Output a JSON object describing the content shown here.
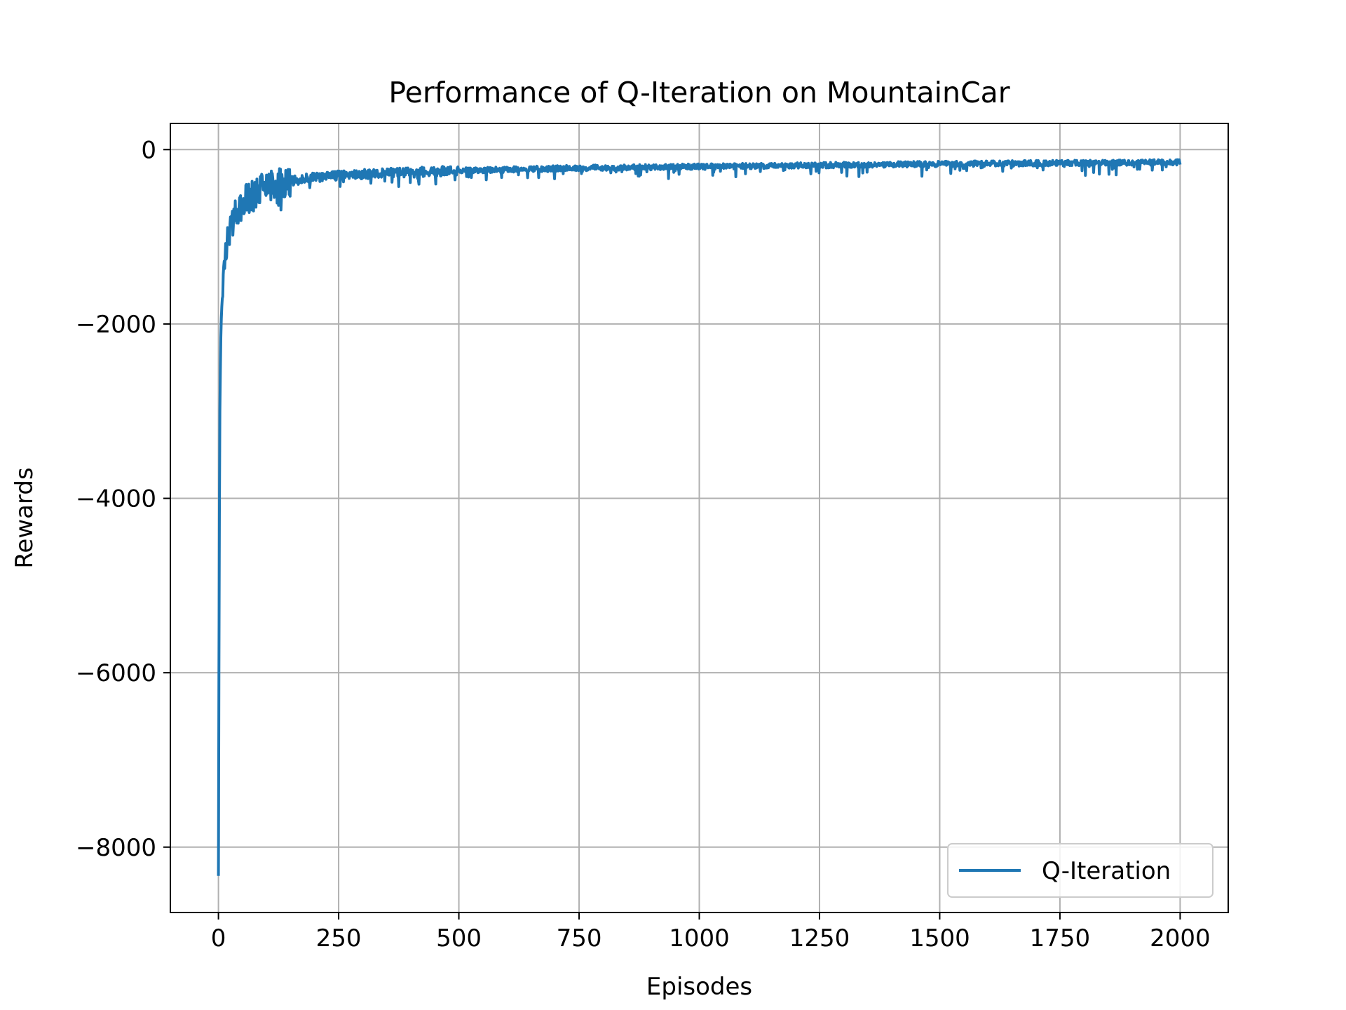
{
  "chart_data": {
    "type": "line",
    "title": "Performance of Q-Iteration on MountainCar",
    "xlabel": "Episodes",
    "ylabel": "Rewards",
    "xlim": [
      -100,
      2100
    ],
    "ylim": [
      -8750,
      300
    ],
    "xticks": [
      0,
      250,
      500,
      750,
      1000,
      1250,
      1500,
      1750,
      2000
    ],
    "xtick_labels": [
      "0",
      "250",
      "500",
      "750",
      "1000",
      "1250",
      "1500",
      "1750",
      "2000"
    ],
    "yticks": [
      0,
      -2000,
      -4000,
      -6000,
      -8000
    ],
    "ytick_labels": [
      "0",
      "−2000",
      "−4000",
      "−6000",
      "−8000"
    ],
    "grid": true,
    "legend_position": "lower-right",
    "series": [
      {
        "name": "Q-Iteration",
        "color": "#1f77b4",
        "x": [
          0,
          1,
          2,
          3,
          4,
          5,
          6,
          8,
          10,
          12,
          15,
          18,
          20,
          25,
          30,
          35,
          40,
          50,
          60,
          70,
          80,
          100,
          125,
          150,
          200,
          250,
          300,
          400,
          500,
          600,
          750,
          1000,
          1250,
          1500,
          1750,
          2000
        ],
        "values": [
          -8330,
          -6000,
          -4200,
          -3000,
          -2400,
          -2200,
          -2000,
          -1700,
          -1500,
          -1350,
          -1200,
          -1100,
          -1000,
          -900,
          -820,
          -760,
          -700,
          -620,
          -560,
          -520,
          -480,
          -440,
          -400,
          -360,
          -320,
          -300,
          -280,
          -260,
          -240,
          -230,
          -210,
          -195,
          -180,
          -165,
          -155,
          -145
        ]
      }
    ]
  }
}
